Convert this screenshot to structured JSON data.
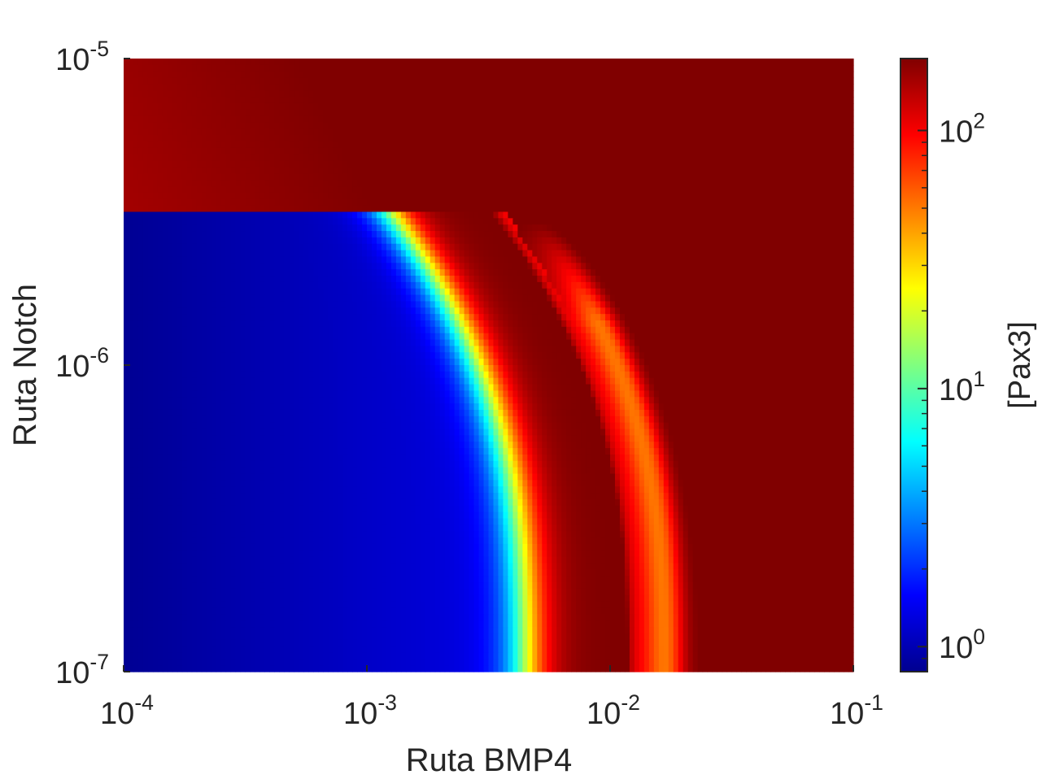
{
  "chart_data": {
    "type": "heatmap",
    "xlabel": "Ruta BMP4",
    "ylabel": "Ruta Notch",
    "colorbar_label": "[Pax3]",
    "x_scale": "log",
    "y_scale": "log",
    "color_scale": "log",
    "colormap": "jet",
    "xlim": [
      0.0001,
      0.1
    ],
    "ylim": [
      1e-07,
      1e-05
    ],
    "clim": [
      0.8,
      190
    ],
    "x_ticks": [
      {
        "base": "10",
        "exp": "-4"
      },
      {
        "base": "10",
        "exp": "-3"
      },
      {
        "base": "10",
        "exp": "-2"
      },
      {
        "base": "10",
        "exp": "-1"
      }
    ],
    "y_ticks": [
      {
        "base": "10",
        "exp": "-7"
      },
      {
        "base": "10",
        "exp": "-6"
      },
      {
        "base": "10",
        "exp": "-5"
      }
    ],
    "colorbar_ticks": [
      {
        "base": "10",
        "exp": "0"
      },
      {
        "base": "10",
        "exp": "1"
      },
      {
        "base": "10",
        "exp": "2"
      }
    ],
    "notch_threshold": 3.1e-06,
    "region_notes": {
      "low_pax3_region": "BMP4 < ~5e-3 and Notch < ~3e-6, [Pax3] ≈ 0.8–2",
      "transition_band": "BMP4 ~5e-3 to ~1e-2, [Pax3] rises through cyan/yellow",
      "peak_band": "BMP4 ~1.1e-2 to ~1.3e-2, [Pax3] ≈ 180",
      "high_pax3_region": "Notch > ~3e-6 or BMP4 > ~2.5e-2, [Pax3] ≈ 120–150"
    }
  }
}
